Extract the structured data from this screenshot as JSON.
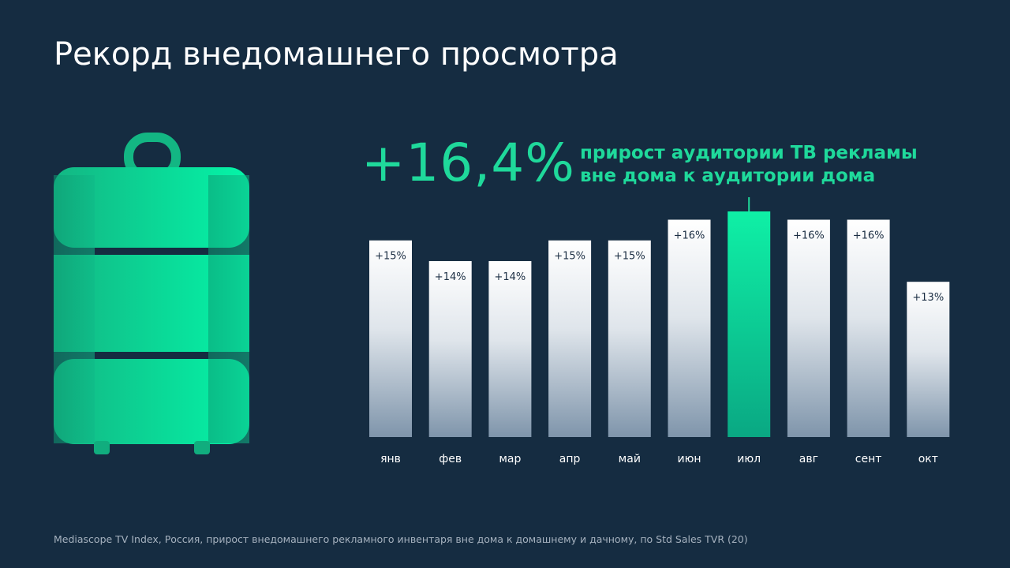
{
  "title": "Рекорд внедомашнего просмотра",
  "headline": {
    "value": "+16,4%",
    "caption_lines": [
      "прирост аудитории ТВ рекламы",
      "вне дома к аудитории дома"
    ]
  },
  "footnote": "Mediascope TV Index, Россия, прирост внедомашнего рекламного инвентаря вне дома к домашнему и дачному, по Std Sales TVR (20)",
  "colors": {
    "background": "#152c41",
    "accent": "#1fd99b",
    "bar_top": "#ffffff",
    "bar_bottom": "#7f95ab",
    "label": "#1b2e43"
  },
  "chart_data": {
    "type": "bar",
    "categories": [
      "янв",
      "фев",
      "мар",
      "апр",
      "май",
      "июн",
      "июл",
      "авг",
      "сент",
      "окт"
    ],
    "values": [
      15,
      14,
      14,
      15,
      15,
      16,
      16.4,
      16,
      16,
      13
    ],
    "value_labels": [
      "+15%",
      "+14%",
      "+14%",
      "+15%",
      "+15%",
      "+16%",
      "",
      "+16%",
      "+16%",
      "+13%"
    ],
    "highlight_index": 6,
    "unit": "%",
    "grid": false,
    "legend": "none"
  }
}
